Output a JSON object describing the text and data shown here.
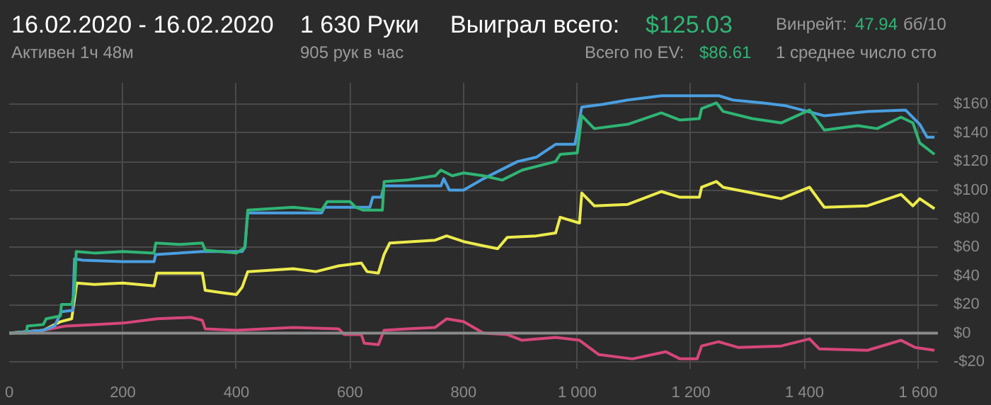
{
  "chart_data": {
    "type": "line",
    "annotations": [
      "16.02.2020 - 16.02.2020",
      "Активен 1ч 48м",
      "1 630 Руки",
      "905 рук в час",
      "Выиграл всего:",
      "$125.03",
      "Винрейт:",
      "47.94",
      "бб/10",
      "Всего по EV:",
      "$86.61",
      "1 среднее число сто"
    ],
    "xlim": [
      0,
      1635
    ],
    "ylim": [
      -25,
      175
    ],
    "xticks": [
      0,
      200,
      400,
      600,
      800,
      {
        "value": 1000,
        "label": "1 000"
      },
      {
        "value": 1200,
        "label": "1 200"
      },
      {
        "value": 1400,
        "label": "1 400"
      },
      {
        "value": 1600,
        "label": "1 600"
      }
    ],
    "yticks": [
      {
        "value": -20,
        "label": "-$20"
      },
      {
        "value": 0,
        "label": "$0"
      },
      {
        "value": 20,
        "label": "$20"
      },
      {
        "value": 40,
        "label": "$40"
      },
      {
        "value": 60,
        "label": "$60"
      },
      {
        "value": 80,
        "label": "$80"
      },
      {
        "value": 100,
        "label": "$100"
      },
      {
        "value": 120,
        "label": "$120"
      },
      {
        "value": 140,
        "label": "$140"
      },
      {
        "value": 160,
        "label": "$160"
      }
    ],
    "grid": true,
    "ref_lines": [
      {
        "axis": "y",
        "value": 0,
        "color": "#8a8a8a"
      }
    ],
    "series": [
      {
        "color": "#d6467a",
        "x": [
          0,
          60,
          100,
          150,
          200,
          260,
          320,
          340,
          345,
          400,
          500,
          580,
          590,
          620,
          625,
          650,
          660,
          700,
          750,
          770,
          800,
          835,
          877,
          903,
          962,
          1004,
          1038,
          1097,
          1156,
          1181,
          1211,
          1219,
          1249,
          1283,
          1359,
          1409,
          1426,
          1511,
          1570,
          1595,
          1629
        ],
        "values": [
          0,
          2,
          5,
          6,
          7,
          10,
          11,
          9,
          3,
          2,
          4,
          3,
          -1,
          -1,
          -7,
          -8,
          2,
          3,
          4,
          10,
          8,
          0,
          -1,
          -5,
          -3,
          -5,
          -15,
          -18,
          -13,
          -18,
          -18,
          -9,
          -6,
          -10,
          -9,
          -4,
          -11,
          -12,
          -5,
          -10,
          -12
        ]
      },
      {
        "color": "#eceb4c",
        "x": [
          0,
          60,
          90,
          110,
          119,
          150,
          200,
          255,
          260,
          340,
          345,
          380,
          400,
          410,
          420,
          500,
          540,
          580,
          620,
          630,
          650,
          660,
          670,
          750,
          770,
          800,
          835,
          860,
          877,
          928,
          962,
          970,
          1004,
          1008,
          1030,
          1089,
          1148,
          1181,
          1215,
          1219,
          1245,
          1257,
          1308,
          1359,
          1409,
          1435,
          1511,
          1570,
          1591,
          1603,
          1629
        ],
        "values": [
          0,
          2,
          8,
          10,
          35,
          34,
          35,
          33,
          42,
          42,
          30,
          28,
          27,
          32,
          43,
          45,
          43,
          47,
          49,
          43,
          42,
          55,
          63,
          65,
          68,
          64,
          61,
          59,
          67,
          68,
          70,
          81,
          77,
          98,
          89,
          90,
          99,
          95,
          95,
          102,
          106,
          102,
          98,
          94,
          102,
          88,
          89,
          97,
          89,
          94,
          87
        ]
      },
      {
        "color": "#4a9fe0",
        "x": [
          0,
          60,
          80,
          92,
          112,
          115,
          130,
          200,
          255,
          258,
          340,
          410,
          415,
          420,
          500,
          550,
          555,
          600,
          635,
          640,
          655,
          660,
          760,
          765,
          775,
          800,
          835,
          895,
          928,
          962,
          996,
          1008,
          1046,
          1089,
          1148,
          1249,
          1274,
          1325,
          1367,
          1435,
          1511,
          1578,
          1603,
          1616,
          1629
        ],
        "values": [
          0,
          2,
          5,
          15,
          16,
          52,
          51,
          50,
          50,
          55,
          57,
          57,
          60,
          84,
          84,
          84,
          88,
          88,
          88,
          95,
          95,
          103,
          103,
          108,
          100,
          100,
          108,
          120,
          123,
          132,
          132,
          158,
          160,
          163,
          166,
          166,
          163,
          161,
          159,
          152,
          155,
          156,
          146,
          137,
          137
        ]
      },
      {
        "color": "#2fb574",
        "x": [
          0,
          30,
          32,
          60,
          65,
          90,
          92,
          110,
          115,
          118,
          150,
          200,
          255,
          258,
          300,
          340,
          345,
          400,
          415,
          420,
          500,
          550,
          560,
          600,
          610,
          623,
          657,
          660,
          700,
          750,
          760,
          780,
          800,
          835,
          868,
          903,
          962,
          970,
          1000,
          1008,
          1030,
          1089,
          1148,
          1181,
          1215,
          1219,
          1245,
          1257,
          1308,
          1359,
          1409,
          1435,
          1494,
          1528,
          1570,
          1591,
          1603,
          1629
        ],
        "values": [
          0,
          0,
          5,
          6,
          10,
          12,
          20,
          20,
          28,
          57,
          56,
          57,
          56,
          63,
          62,
          63,
          58,
          56,
          60,
          86,
          88,
          86,
          92,
          92,
          88,
          86,
          86,
          106,
          107,
          110,
          114,
          110,
          112,
          110,
          107,
          114,
          120,
          125,
          126,
          152,
          143,
          146,
          154,
          149,
          150,
          157,
          161,
          155,
          150,
          147,
          156,
          142,
          145,
          143,
          151,
          147,
          133,
          125
        ]
      }
    ]
  }
}
